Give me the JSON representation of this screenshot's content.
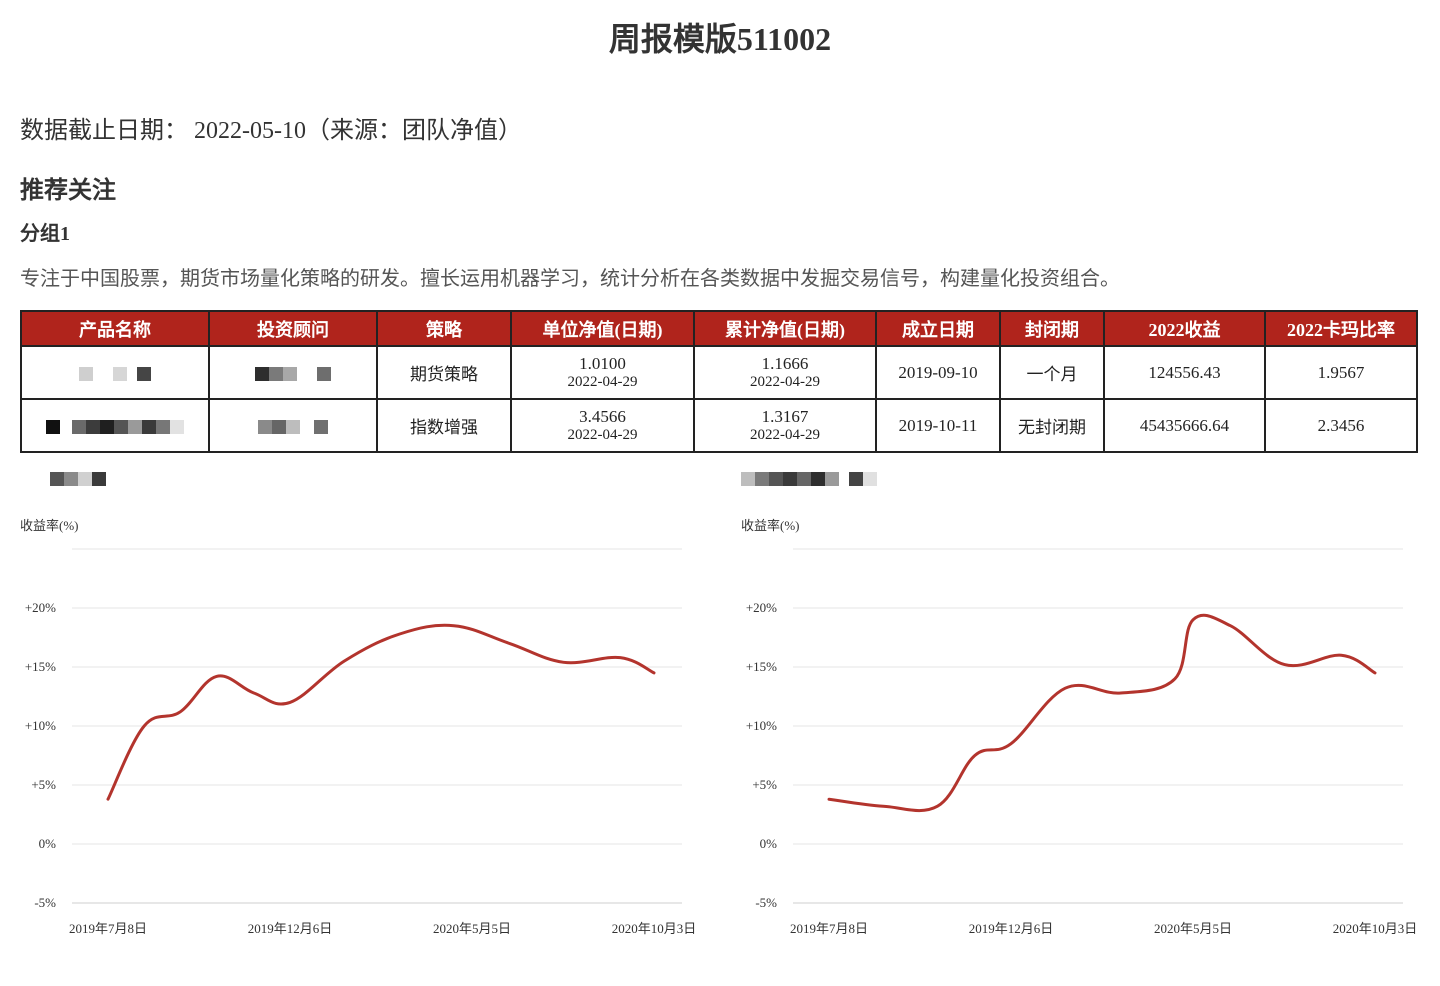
{
  "title": "周报模版511002",
  "date_line": "数据截止日期： 2022-05-10（来源：团队净值）",
  "section_title": "推荐关注",
  "group": {
    "title": "分组1",
    "description": "专注于中国股票，期货市场量化策略的研发。擅长运用机器学习，统计分析在各类数据中发掘交易信号，构建量化投资组合。"
  },
  "table": {
    "headers": [
      "产品名称",
      "投资顾问",
      "策略",
      "单位净值(日期)",
      "累计净值(日期)",
      "成立日期",
      "封闭期",
      "2022收益",
      "2022卡玛比率"
    ],
    "rows": [
      {
        "strategy": "期货策略",
        "unit_nav": "1.0100",
        "unit_nav_date": "2022-04-29",
        "acc_nav": "1.1666",
        "acc_nav_date": "2022-04-29",
        "inception": "2019-09-10",
        "lockup": "一个月",
        "return_2022": "124556.43",
        "calmar_2022": "1.9567"
      },
      {
        "strategy": "指数增强",
        "unit_nav": "3.4566",
        "unit_nav_date": "2022-04-29",
        "acc_nav": "1.3167",
        "acc_nav_date": "2022-04-29",
        "inception": "2019-10-11",
        "lockup": "无封闭期",
        "return_2022": "45435666.64",
        "calmar_2022": "2.3456"
      }
    ]
  },
  "chart_data": [
    {
      "type": "line",
      "ylabel": "收益率(%)",
      "ylim": [
        -5,
        25
      ],
      "y_ticks": [
        "-5%",
        "0%",
        "+5%",
        "+10%",
        "+15%",
        "+20%"
      ],
      "x_ticks": [
        "2019年7月8日",
        "2019年12月6日",
        "2020年5月5日",
        "2020年10月3日"
      ],
      "x": [
        "2019-07-08",
        "2019-08-07",
        "2019-09-06",
        "2019-10-06",
        "2019-11-06",
        "2019-12-06",
        "2020-01-20",
        "2020-03-06",
        "2020-04-20",
        "2020-06-05",
        "2020-07-20",
        "2020-09-05",
        "2020-10-03"
      ],
      "series": [
        {
          "values": [
            3.8,
            10.0,
            11.2,
            14.2,
            12.8,
            12.0,
            15.5,
            17.8,
            18.5,
            17.0,
            15.4,
            15.8,
            14.5
          ],
          "color": "#b3342d"
        }
      ],
      "grid": true
    },
    {
      "type": "line",
      "ylabel": "收益率(%)",
      "ylim": [
        -5,
        25
      ],
      "y_ticks": [
        "-5%",
        "0%",
        "+5%",
        "+10%",
        "+15%",
        "+20%"
      ],
      "x_ticks": [
        "2019年7月8日",
        "2019年12月6日",
        "2020年5月5日",
        "2020年10月3日"
      ],
      "x": [
        "2019-07-08",
        "2019-08-22",
        "2019-10-06",
        "2019-11-06",
        "2019-12-06",
        "2020-01-20",
        "2020-03-06",
        "2020-04-20",
        "2020-05-05",
        "2020-06-05",
        "2020-07-20",
        "2020-09-05",
        "2020-10-03"
      ],
      "series": [
        {
          "values": [
            3.8,
            3.2,
            3.2,
            7.5,
            8.5,
            13.2,
            12.8,
            14.0,
            19.0,
            18.5,
            15.2,
            16.0,
            14.5
          ],
          "color": "#b3342d"
        }
      ],
      "grid": true
    }
  ]
}
